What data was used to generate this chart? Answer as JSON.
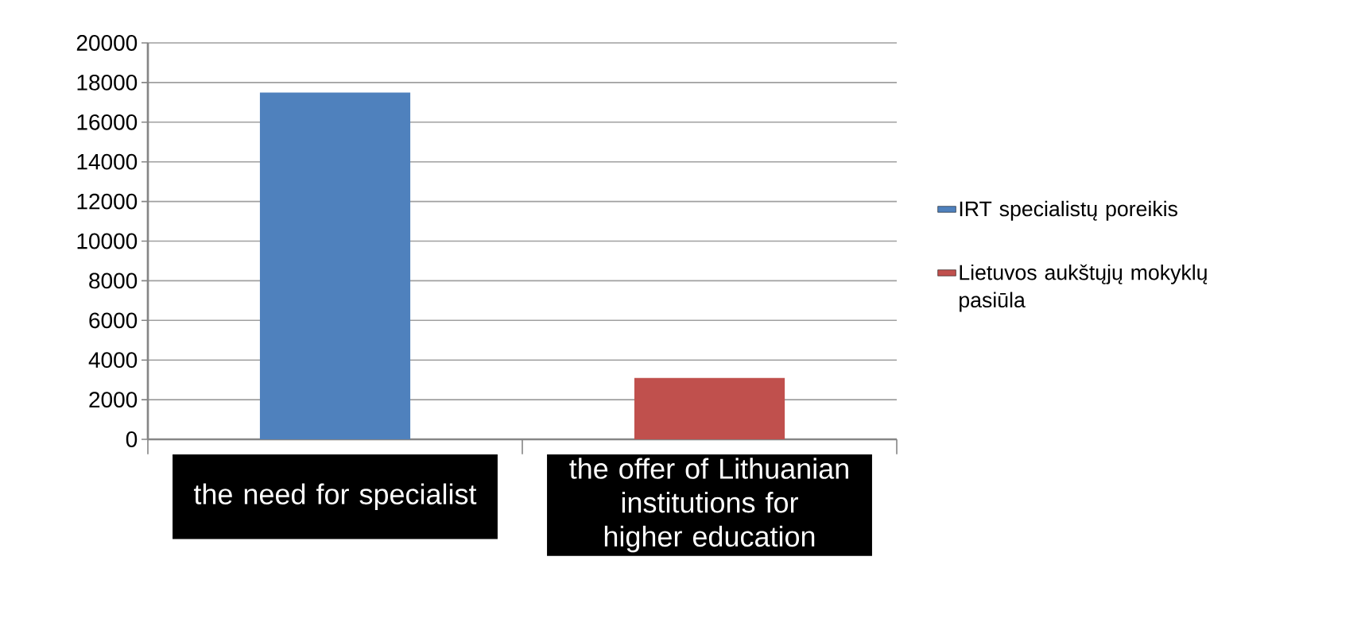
{
  "chart_data": {
    "type": "bar",
    "categories": [
      "the need for specialist",
      "the offer of Lithuanian institutions for higher education"
    ],
    "series": [
      {
        "name": "IRT specialistų poreikis",
        "color": "#4f81bd",
        "values": [
          17500,
          null
        ]
      },
      {
        "name": "Lietuvos aukštųjų mokyklų pasiūla",
        "color": "#c0504d",
        "values": [
          null,
          3100
        ]
      }
    ],
    "ylim": [
      0,
      20000
    ],
    "yticks": [
      0,
      2000,
      4000,
      6000,
      8000,
      10000,
      12000,
      14000,
      16000,
      18000,
      20000
    ],
    "grid": "y",
    "legend": "right"
  }
}
